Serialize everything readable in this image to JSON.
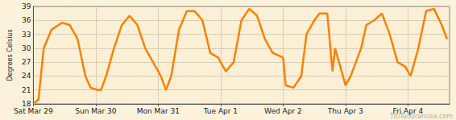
{
  "chart_data": {
    "type": "line",
    "y_label": "Degrees Celsius",
    "annotation": "TitiTudorancea.com",
    "color": "#ff8000",
    "grid": true,
    "xlim": [
      0,
      160
    ],
    "xticks": [
      {
        "value": 0,
        "label": "Sat Mar 29"
      },
      {
        "value": 24,
        "label": "Sun Mar 30"
      },
      {
        "value": 48,
        "label": "Mon Mar 31"
      },
      {
        "value": 72,
        "label": "Tue Apr 1"
      },
      {
        "value": 96,
        "label": "Wed Apr 2"
      },
      {
        "value": 120,
        "label": "Thu Apr 3"
      },
      {
        "value": 144,
        "label": "Fri Apr 4"
      }
    ],
    "ylim": [
      18,
      39
    ],
    "yticks": [
      18,
      21,
      24,
      27,
      30,
      33,
      36,
      39
    ],
    "x": [
      0,
      2,
      4,
      7,
      11,
      14,
      17,
      20,
      22,
      25,
      26,
      28,
      31,
      34,
      37,
      40,
      43,
      46,
      49,
      51,
      53,
      56,
      59,
      62,
      65,
      68,
      71,
      74,
      77,
      80,
      83,
      86,
      89,
      92,
      96,
      97,
      100,
      103,
      105,
      108,
      110,
      113,
      115,
      116,
      118,
      120,
      122,
      126,
      128,
      131,
      134,
      137,
      140,
      143,
      145,
      148,
      151,
      154,
      157,
      159
    ],
    "values": [
      18,
      19,
      30,
      34,
      35.5,
      35,
      32,
      24,
      21.5,
      21,
      21,
      24,
      30,
      35,
      37,
      35,
      30,
      27,
      24,
      21,
      24,
      34,
      38,
      38,
      36,
      29,
      28,
      25,
      27,
      36,
      38.5,
      37,
      32,
      29,
      28,
      22,
      21.5,
      24,
      33,
      36,
      37.5,
      37.5,
      25,
      30,
      26,
      22,
      24,
      30,
      35,
      36,
      37.5,
      33,
      27,
      26,
      24,
      30,
      38,
      38.5,
      35,
      32
    ]
  }
}
